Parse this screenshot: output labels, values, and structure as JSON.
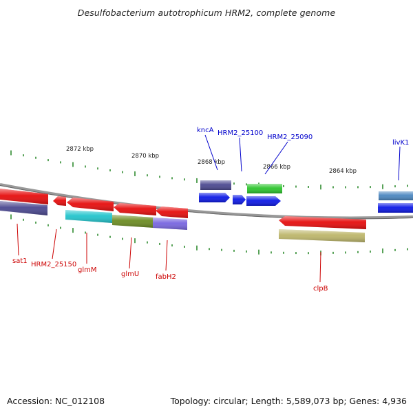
{
  "title": "Desulfobacterium autotrophicum HRM2, complete genome",
  "footer": {
    "accession": "Accession: NC_012108",
    "summary": "Topology: circular; Length: 5,589,073 bp; Genes: 4,936"
  },
  "scale_labels": [
    "2872 kbp",
    "2870 kbp",
    "2868 kbp",
    "2866 kbp",
    "2864 kbp"
  ],
  "colors": {
    "backbone": "#8a8a8a",
    "tick": "#2e8b2e",
    "label_forward": "#0000cc",
    "label_reverse": "#cc0000"
  },
  "genes_forward": [
    {
      "label": "kncA",
      "color": "#4b4890"
    },
    {
      "label": "HRM2_25100",
      "color": "#0d19e6"
    },
    {
      "label": "HRM2_25090",
      "color": "#2cc42c"
    },
    {
      "label": "livK1",
      "color": "#4a86c0"
    }
  ],
  "genes_reverse": [
    {
      "label": "sat1",
      "color": "#e60d0d"
    },
    {
      "label": "HRM2_25150",
      "color": "#e60d0d"
    },
    {
      "label": "glmM",
      "color": "#22c4cc"
    },
    {
      "label": "glmU",
      "color": "#6c8c22"
    },
    {
      "label": "fabH2",
      "color": "#7866e0"
    },
    {
      "label": "clpB",
      "color": "#bdb66a"
    }
  ]
}
